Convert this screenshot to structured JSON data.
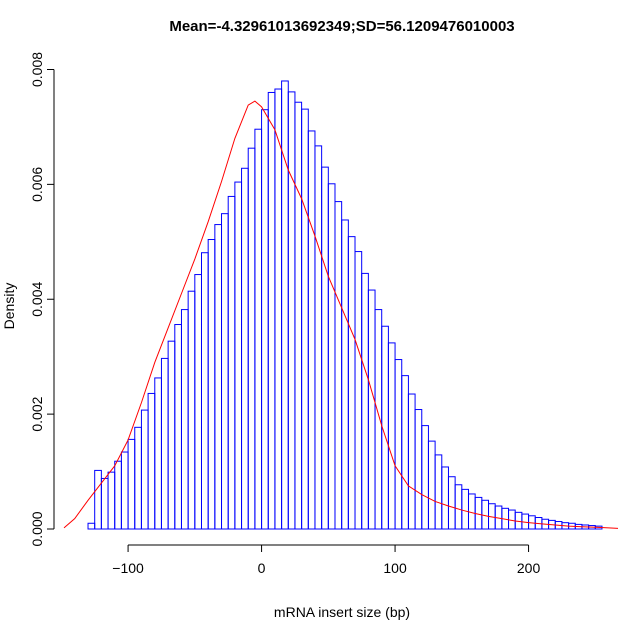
{
  "chart_data": {
    "type": "bar",
    "title": "Mean=-4.32961013692349;SD=56.1209476010003",
    "xlabel": "mRNA insert size (bp)",
    "ylabel": "Density",
    "xlim": [
      -148,
      267
    ],
    "ylim": [
      0,
      0.0082
    ],
    "x_ticks": [
      -100,
      0,
      100,
      200
    ],
    "x_tick_labels": [
      "−100",
      "0",
      "100",
      "200"
    ],
    "y_ticks": [
      0,
      0.002,
      0.004,
      0.006,
      0.008
    ],
    "y_tick_labels": [
      "0.000",
      "0.002",
      "0.004",
      "0.006",
      "0.008"
    ],
    "grid": false,
    "bin_width": 5,
    "bin_start": -130,
    "values": [
      0.0001,
      0.00102,
      0.00088,
      0.00099,
      0.00118,
      0.00134,
      0.00156,
      0.00177,
      0.00207,
      0.00236,
      0.00263,
      0.00297,
      0.00327,
      0.00356,
      0.00382,
      0.00414,
      0.00443,
      0.00481,
      0.00504,
      0.0053,
      0.00549,
      0.00579,
      0.00604,
      0.00628,
      0.00663,
      0.00696,
      0.0073,
      0.0076,
      0.00766,
      0.0078,
      0.00761,
      0.00743,
      0.00731,
      0.00693,
      0.00667,
      0.0063,
      0.00601,
      0.0057,
      0.00538,
      0.00509,
      0.00483,
      0.00445,
      0.00416,
      0.00382,
      0.00353,
      0.00324,
      0.00295,
      0.00267,
      0.00235,
      0.00208,
      0.0018,
      0.00153,
      0.00129,
      0.00108,
      0.00091,
      0.00077,
      0.00069,
      0.00061,
      0.00055,
      0.0005,
      0.00044,
      0.0004,
      0.00036,
      0.00033,
      0.00029,
      0.00026,
      0.00023,
      0.0002,
      0.00017,
      0.00015,
      0.00013,
      0.00011,
      0.0001,
      8e-05,
      7e-05,
      6e-05,
      5e-05
    ],
    "density_curve": {
      "x": [
        -148,
        -140,
        -130,
        -120,
        -110,
        -100,
        -90,
        -80,
        -70,
        -60,
        -50,
        -40,
        -30,
        -20,
        -10,
        -5,
        0,
        10,
        20,
        30,
        40,
        50,
        60,
        70,
        80,
        90,
        100,
        110,
        120,
        130,
        140,
        150,
        160,
        170,
        180,
        190,
        200,
        210,
        220,
        230,
        240,
        250,
        260,
        267
      ],
      "y": [
        2e-05,
        0.00018,
        0.0005,
        0.0008,
        0.0011,
        0.00155,
        0.0022,
        0.0029,
        0.0035,
        0.0041,
        0.0047,
        0.00535,
        0.00605,
        0.0068,
        0.00738,
        0.00745,
        0.00735,
        0.00695,
        0.00625,
        0.00575,
        0.0051,
        0.0044,
        0.00385,
        0.0033,
        0.0026,
        0.0018,
        0.0011,
        0.00075,
        0.0006,
        0.00048,
        0.0004,
        0.00033,
        0.00027,
        0.00022,
        0.00018,
        0.00014,
        0.00011,
        9e-05,
        7e-05,
        5e-05,
        4e-05,
        3e-05,
        2e-05,
        1e-05
      ]
    },
    "colors": {
      "bars": "#0000ff",
      "curve": "#ff0000",
      "axes": "#000000"
    }
  }
}
